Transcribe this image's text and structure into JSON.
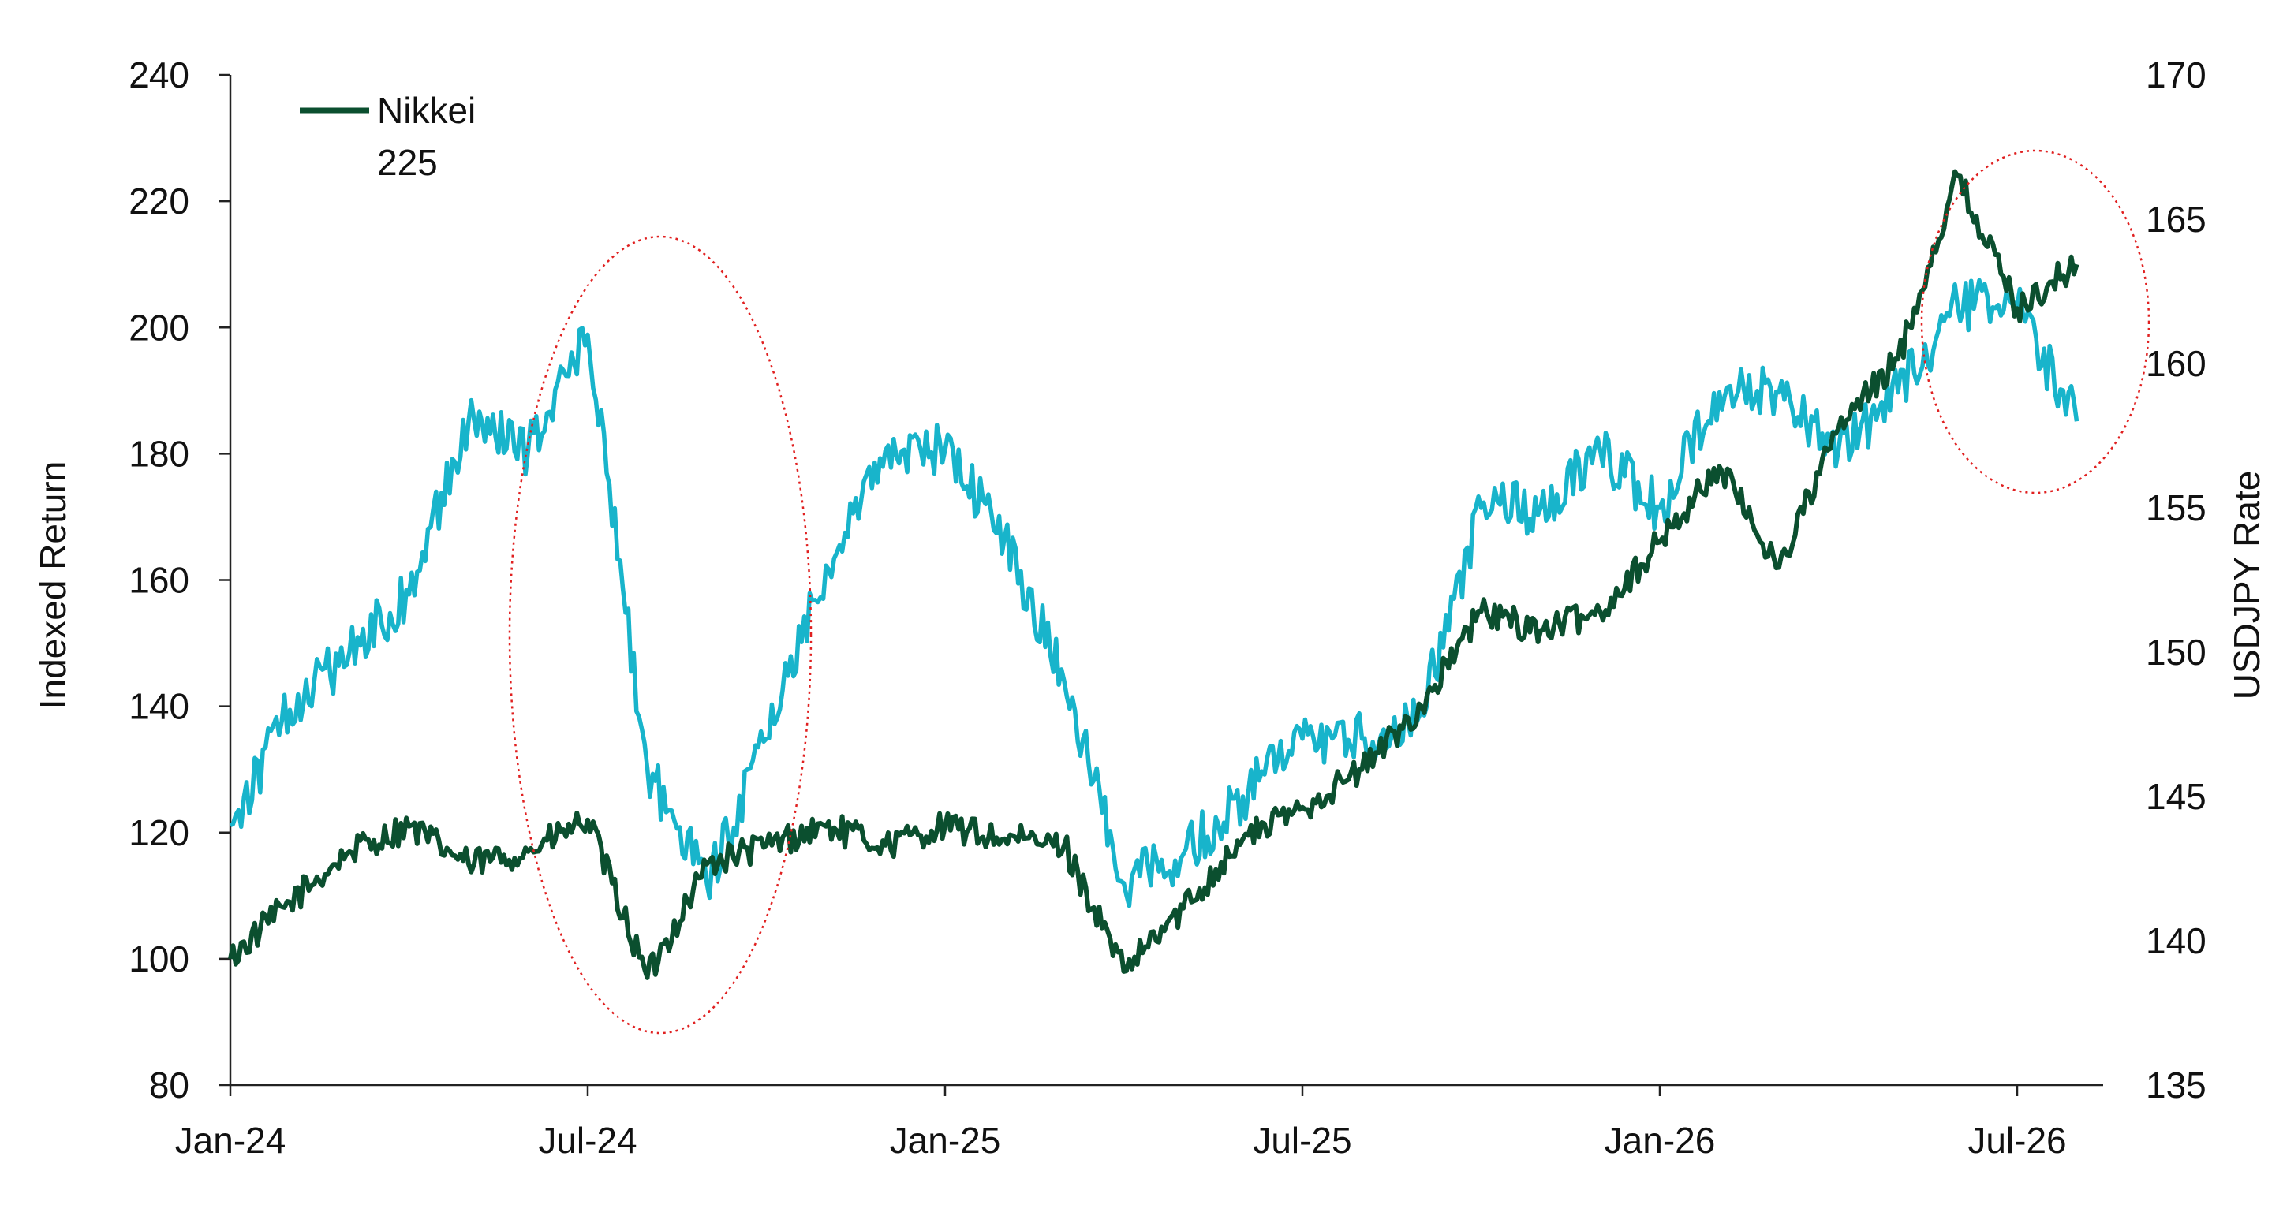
{
  "chart_data": {
    "type": "line",
    "title": "",
    "xlabel": "",
    "ylabel_left": "Indexed Return",
    "ylabel_right": "USDJPY Rate",
    "x_ticks": [
      "Jan-24",
      "Jul-24",
      "Jan-25",
      "Jul-25",
      "Jan-26",
      "Jul-26"
    ],
    "y_left": {
      "min": 80,
      "max": 240,
      "ticks": [
        "80",
        "100",
        "120",
        "140",
        "160",
        "180",
        "200",
        "220",
        "240"
      ]
    },
    "y_right": {
      "min": 135,
      "max": 170,
      "ticks": [
        "135",
        "140",
        "145",
        "150",
        "155",
        "160",
        "165",
        "170"
      ]
    },
    "legend_position": "top-left",
    "grid": false,
    "x": [
      "2024-01",
      "2024-02",
      "2024-03",
      "2024-04",
      "2024-05",
      "2024-06",
      "2024-07",
      "2024-08",
      "2024-09",
      "2024-10",
      "2024-11",
      "2024-12",
      "2025-01",
      "2025-02",
      "2025-03",
      "2025-04",
      "2025-05",
      "2025-06",
      "2025-07",
      "2025-08",
      "2025-09",
      "2025-10",
      "2025-11",
      "2025-12",
      "2026-01",
      "2026-02",
      "2026-03",
      "2026-04",
      "2026-05",
      "2026-06",
      "2026-07",
      "2026-08"
    ],
    "series": [
      {
        "name": "Nikkei 225",
        "axis": "left",
        "color": "#0b4f2f",
        "values": [
          100,
          109,
          117,
          121,
          115,
          117,
          122,
          97,
          115,
          118,
          121,
          118,
          121,
          119,
          118,
          98,
          108,
          119,
          124,
          130,
          140,
          155,
          152,
          155,
          166,
          178,
          162,
          184,
          195,
          224,
          203,
          210
        ]
      },
      {
        "name": "",
        "axis": "right",
        "color": "#18b4cb",
        "values": [
          144,
          148,
          150,
          152,
          158,
          157,
          161,
          146,
          142,
          147,
          153,
          157,
          157,
          154,
          149,
          142,
          143,
          145,
          147,
          147,
          148,
          155,
          155,
          157,
          155,
          159,
          159,
          157,
          159,
          162,
          162,
          158
        ]
      }
    ],
    "legend": [
      {
        "label_line1": "Nikkei",
        "label_line2": "225",
        "color": "#0b4f2f"
      }
    ],
    "annotations": [
      {
        "type": "ellipse",
        "color": "#e02020",
        "around": "2024-08"
      },
      {
        "type": "ellipse",
        "color": "#e02020",
        "around": "2026-07"
      }
    ]
  }
}
